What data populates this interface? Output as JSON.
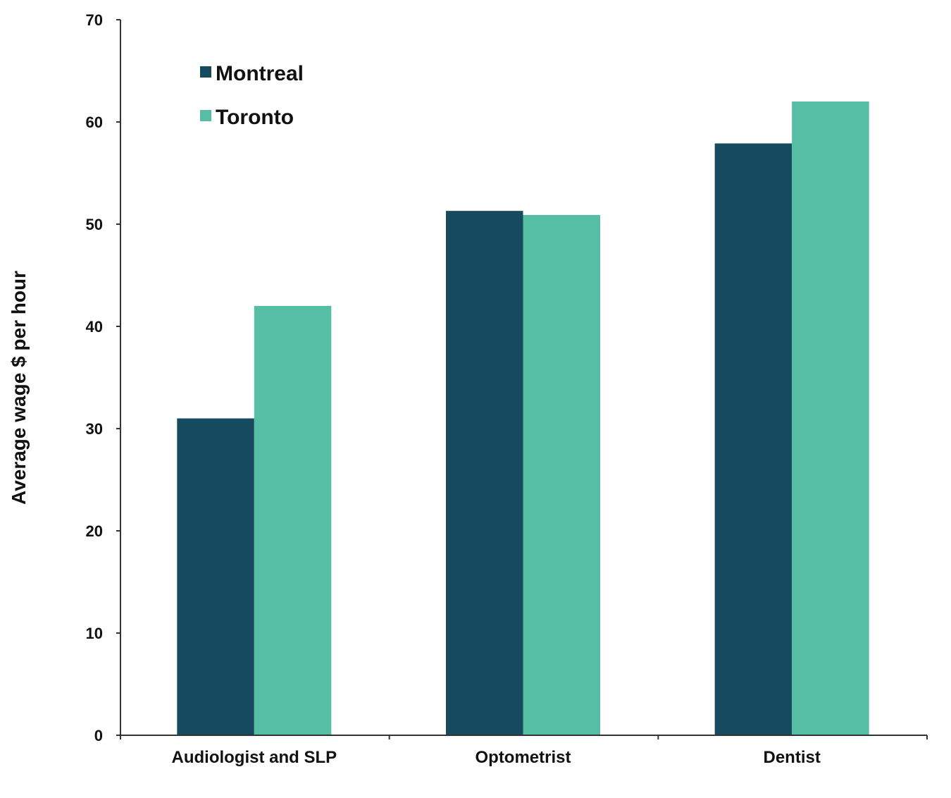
{
  "chart_data": {
    "type": "bar",
    "title": "",
    "xlabel": "",
    "ylabel": "Average wage $ per hour",
    "categories": [
      "Audiologist and SLP",
      "Optometrist",
      "Dentist"
    ],
    "series": [
      {
        "name": "Montreal",
        "color": "#164b5f",
        "values": [
          31,
          51.3,
          57.9
        ]
      },
      {
        "name": "Toronto",
        "color": "#56bea4",
        "values": [
          42,
          50.9,
          62
        ]
      }
    ],
    "ylim": [
      0,
      70
    ],
    "yticks": [
      0,
      10,
      20,
      30,
      40,
      50,
      60,
      70
    ],
    "grid": false,
    "legend_position": "top-left"
  }
}
